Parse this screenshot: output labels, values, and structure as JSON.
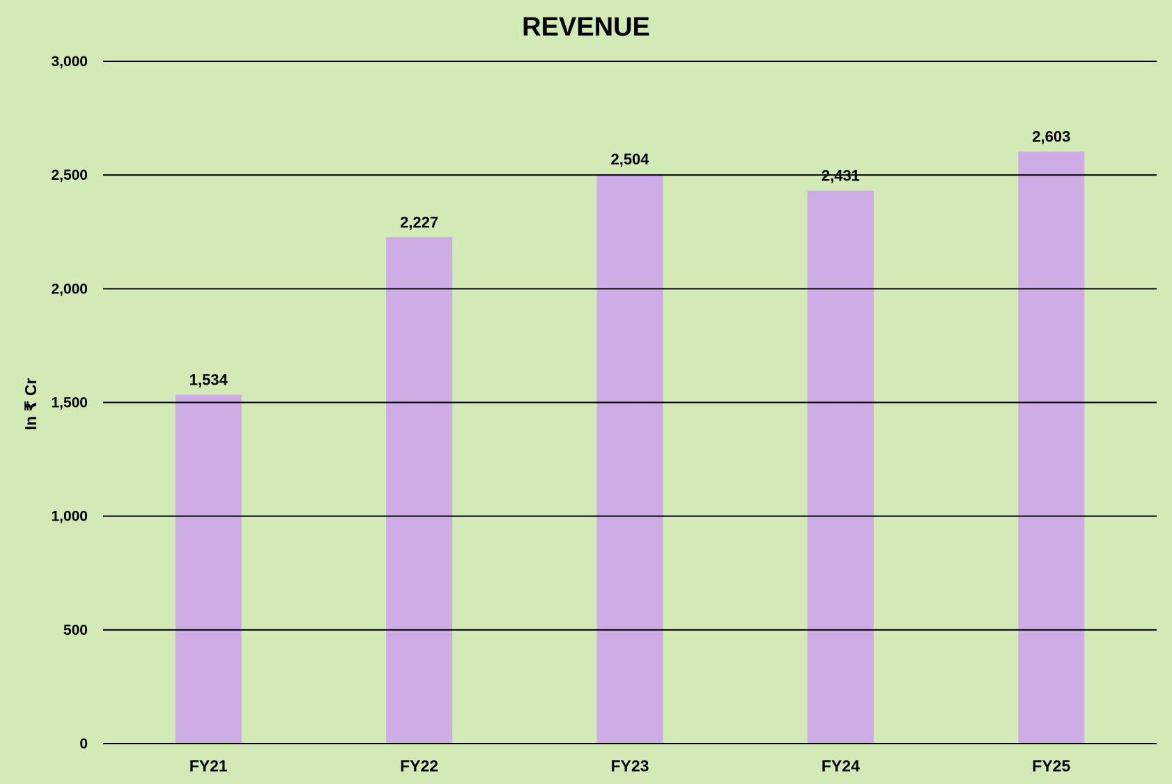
{
  "chart_data": {
    "type": "bar",
    "title": "REVENUE",
    "xlabel": "",
    "ylabel": "In ₹ Cr",
    "categories": [
      "FY21",
      "FY22",
      "FY23",
      "FY24",
      "FY25"
    ],
    "values": [
      1534,
      2227,
      2504,
      2431,
      2603
    ],
    "data_labels": [
      "1,534",
      "2,227",
      "2,504",
      "2,431",
      "2,603"
    ],
    "ylim": [
      0,
      3000
    ],
    "yticks": [
      0,
      500,
      1000,
      1500,
      2000,
      2500,
      3000
    ],
    "ytick_labels": [
      "0",
      "500",
      "1,000",
      "1,500",
      "2,000",
      "2,500",
      "3,000"
    ],
    "grid": true,
    "legend": "none",
    "colors": {
      "background": "#d3eab7",
      "bar": "#ceade6",
      "gridline": "#000000",
      "text": "#000000"
    }
  }
}
